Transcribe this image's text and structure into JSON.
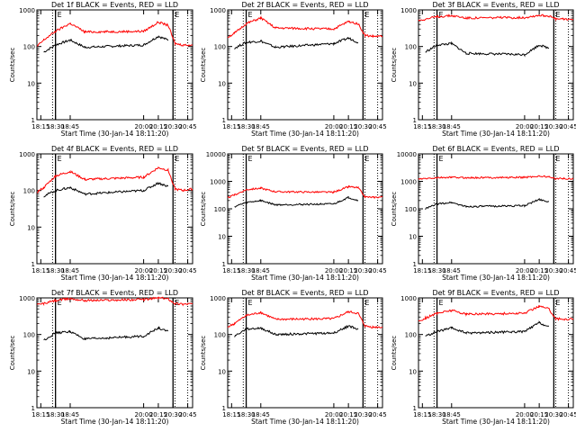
{
  "chart_data": [
    {
      "type": "line",
      "title": "Det 1f BLACK = Events, RED = LLD",
      "xlabel": "Start Time (30-Jan-14 18:11:20)",
      "ylabel": "Counts/sec",
      "yscale": "log",
      "ylim": [
        1,
        1000
      ],
      "xlim": [
        "18:11",
        "20:50"
      ],
      "xticks": [
        "18:15",
        "18:30",
        "18:45",
        "20:00",
        "20:15",
        "20:30",
        "20:45"
      ],
      "yticks": [
        "1",
        "10",
        "100",
        "1000"
      ],
      "markers": {
        "solid": [
          "18:30",
          "20:30"
        ],
        "dotted": [
          "18:27",
          "20:32",
          "20:45"
        ],
        "labels": [
          "E",
          "E"
        ]
      },
      "series": [
        {
          "color": "#000000",
          "x": [
            "18:11",
            "18:18",
            "18:30",
            "18:45",
            "19:00",
            "20:00",
            "20:15",
            "20:25",
            "20:30"
          ],
          "values": [
            null,
            70,
            110,
            150,
            95,
            110,
            190,
            150,
            null
          ]
        },
        {
          "color": "#ff0000",
          "x": [
            "18:11",
            "18:18",
            "18:30",
            "18:45",
            "19:00",
            "20:00",
            "20:15",
            "20:25",
            "20:32",
            "20:40",
            "20:50"
          ],
          "values": [
            100,
            150,
            260,
            430,
            250,
            260,
            460,
            380,
            120,
            110,
            110
          ]
        }
      ]
    },
    {
      "type": "line",
      "title": "Det 2f BLACK = Events, RED = LLD",
      "xlabel": "Start Time (30-Jan-14 18:11:20)",
      "ylabel": "Counts/sec",
      "yscale": "log",
      "ylim": [
        1,
        1000
      ],
      "xlim": [
        "18:11",
        "20:50"
      ],
      "xticks": [
        "18:15",
        "18:30",
        "18:45",
        "20:00",
        "20:15",
        "20:30",
        "20:45"
      ],
      "yticks": [
        "1",
        "10",
        "100",
        "1000"
      ],
      "markers": {
        "solid": [
          "18:30",
          "20:30"
        ],
        "dotted": [
          "18:27",
          "20:32",
          "20:45"
        ],
        "labels": [
          "E",
          "E"
        ]
      },
      "series": [
        {
          "color": "#000000",
          "x": [
            "18:11",
            "18:18",
            "18:30",
            "18:45",
            "19:00",
            "20:00",
            "20:15",
            "20:25",
            "20:30"
          ],
          "values": [
            null,
            90,
            130,
            140,
            95,
            120,
            170,
            130,
            null
          ]
        },
        {
          "color": "#ff0000",
          "x": [
            "18:11",
            "18:18",
            "18:30",
            "18:45",
            "19:00",
            "20:00",
            "20:15",
            "20:25",
            "20:32",
            "20:40",
            "20:50"
          ],
          "values": [
            180,
            230,
            420,
            600,
            320,
            300,
            480,
            420,
            200,
            190,
            190
          ]
        }
      ]
    },
    {
      "type": "line",
      "title": "Det 3f BLACK = Events, RED = LLD",
      "xlabel": "Start Time (30-Jan-14 18:11:20)",
      "ylabel": "Counts/sec",
      "yscale": "log",
      "ylim": [
        1,
        1000
      ],
      "xlim": [
        "18:11",
        "20:50"
      ],
      "xticks": [
        "18:15",
        "18:30",
        "18:45",
        "20:00",
        "20:15",
        "20:30",
        "20:45"
      ],
      "yticks": [
        "1",
        "10",
        "100",
        "1000"
      ],
      "markers": {
        "solid": [
          "18:30",
          "20:30"
        ],
        "dotted": [
          "18:27",
          "20:32",
          "20:45"
        ],
        "labels": [
          "E",
          "E"
        ]
      },
      "series": [
        {
          "color": "#000000",
          "x": [
            "18:11",
            "18:18",
            "18:30",
            "18:45",
            "19:00",
            "20:00",
            "20:15",
            "20:25",
            "20:30"
          ],
          "values": [
            null,
            70,
            110,
            120,
            65,
            60,
            110,
            90,
            null
          ]
        },
        {
          "color": "#ff0000",
          "x": [
            "18:11",
            "18:18",
            "18:30",
            "18:45",
            "19:00",
            "20:00",
            "20:15",
            "20:25",
            "20:32",
            "20:40",
            "20:50"
          ],
          "values": [
            520,
            560,
            650,
            700,
            600,
            620,
            720,
            680,
            560,
            560,
            560
          ]
        }
      ]
    },
    {
      "type": "line",
      "title": "Det 4f BLACK = Events, RED = LLD",
      "xlabel": "Start Time (30-Jan-14 18:11:20)",
      "ylabel": "Counts/sec",
      "yscale": "log",
      "ylim": [
        1,
        1000
      ],
      "xlim": [
        "18:11",
        "20:50"
      ],
      "xticks": [
        "18:15",
        "18:30",
        "18:45",
        "20:00",
        "20:15",
        "20:30",
        "20:45"
      ],
      "yticks": [
        "1",
        "10",
        "100",
        "1000"
      ],
      "markers": {
        "solid": [
          "18:30",
          "20:30"
        ],
        "dotted": [
          "18:27",
          "20:32",
          "20:45"
        ],
        "labels": [
          "E",
          "E"
        ]
      },
      "series": [
        {
          "color": "#000000",
          "x": [
            "18:11",
            "18:18",
            "18:30",
            "18:45",
            "19:00",
            "20:00",
            "20:15",
            "20:25",
            "20:30"
          ],
          "values": [
            null,
            70,
            100,
            120,
            80,
            100,
            160,
            130,
            null
          ]
        },
        {
          "color": "#ff0000",
          "x": [
            "18:11",
            "18:18",
            "18:30",
            "18:45",
            "19:00",
            "20:00",
            "20:15",
            "20:25",
            "20:32",
            "20:40",
            "20:50"
          ],
          "values": [
            90,
            120,
            250,
            330,
            200,
            230,
            420,
            360,
            110,
            100,
            110
          ]
        }
      ]
    },
    {
      "type": "line",
      "title": "Det 5f BLACK = Events, RED = LLD",
      "xlabel": "Start Time (30-Jan-14 18:11:20)",
      "ylabel": "Counts/sec",
      "yscale": "log",
      "ylim": [
        1,
        10000
      ],
      "xlim": [
        "18:11",
        "20:50"
      ],
      "xticks": [
        "18:15",
        "18:30",
        "18:45",
        "20:00",
        "20:15",
        "20:30",
        "20:45"
      ],
      "yticks": [
        "1",
        "10",
        "100",
        "1000",
        "10000"
      ],
      "markers": {
        "solid": [
          "18:30",
          "20:30"
        ],
        "dotted": [
          "18:27",
          "20:32",
          "20:45"
        ],
        "labels": [
          "E",
          "E"
        ]
      },
      "series": [
        {
          "color": "#000000",
          "x": [
            "18:11",
            "18:18",
            "18:30",
            "18:45",
            "19:00",
            "20:00",
            "20:15",
            "20:25",
            "20:30"
          ],
          "values": [
            null,
            120,
            170,
            200,
            140,
            150,
            260,
            200,
            null
          ]
        },
        {
          "color": "#ff0000",
          "x": [
            "18:11",
            "18:18",
            "18:30",
            "18:45",
            "19:00",
            "20:00",
            "20:15",
            "20:25",
            "20:32",
            "20:40",
            "20:50"
          ],
          "values": [
            250,
            320,
            500,
            560,
            420,
            400,
            640,
            580,
            270,
            260,
            270
          ]
        }
      ]
    },
    {
      "type": "line",
      "title": "Det 6f BLACK = Events, RED = LLD",
      "xlabel": "Start Time (30-Jan-14 18:11:20)",
      "ylabel": "Counts/sec",
      "yscale": "log",
      "ylim": [
        1,
        10000
      ],
      "xlim": [
        "18:11",
        "20:50"
      ],
      "xticks": [
        "18:15",
        "18:30",
        "18:45",
        "20:00",
        "20:15",
        "20:30",
        "20:45"
      ],
      "yticks": [
        "1",
        "10",
        "100",
        "1000",
        "10000"
      ],
      "markers": {
        "solid": [
          "18:30",
          "20:30"
        ],
        "dotted": [
          "18:27",
          "20:32",
          "20:45"
        ],
        "labels": [
          "E",
          "E"
        ]
      },
      "series": [
        {
          "color": "#000000",
          "x": [
            "18:11",
            "18:18",
            "18:30",
            "18:45",
            "19:00",
            "20:00",
            "20:15",
            "20:25",
            "20:30"
          ],
          "values": [
            null,
            100,
            150,
            170,
            120,
            130,
            220,
            180,
            null
          ]
        },
        {
          "color": "#ff0000",
          "x": [
            "18:11",
            "18:18",
            "18:30",
            "18:45",
            "19:00",
            "20:00",
            "20:15",
            "20:25",
            "20:32",
            "20:40",
            "20:50"
          ],
          "values": [
            1200,
            1250,
            1350,
            1400,
            1350,
            1400,
            1550,
            1450,
            1250,
            1250,
            1250
          ]
        }
      ]
    },
    {
      "type": "line",
      "title": "Det 7f BLACK = Events, RED = LLD",
      "xlabel": "Start Time (30-Jan-14 18:11:20)",
      "ylabel": "Counts/sec",
      "yscale": "log",
      "ylim": [
        1,
        1000
      ],
      "xlim": [
        "18:11",
        "20:50"
      ],
      "xticks": [
        "18:15",
        "18:30",
        "18:45",
        "20:00",
        "20:15",
        "20:30",
        "20:45"
      ],
      "yticks": [
        "1",
        "10",
        "100",
        "1000"
      ],
      "markers": {
        "solid": [
          "18:30",
          "20:30"
        ],
        "dotted": [
          "18:27",
          "20:32",
          "20:45"
        ],
        "labels": [
          "E",
          "E"
        ]
      },
      "series": [
        {
          "color": "#000000",
          "x": [
            "18:11",
            "18:18",
            "18:30",
            "18:45",
            "19:00",
            "20:00",
            "20:15",
            "20:25",
            "20:30"
          ],
          "values": [
            null,
            70,
            110,
            120,
            75,
            90,
            150,
            120,
            null
          ]
        },
        {
          "color": "#ff0000",
          "x": [
            "18:11",
            "18:18",
            "18:30",
            "18:45",
            "19:00",
            "20:00",
            "20:15",
            "20:25",
            "20:32",
            "20:40",
            "20:50"
          ],
          "values": [
            650,
            700,
            850,
            950,
            850,
            900,
            1000,
            950,
            700,
            680,
            700
          ]
        }
      ]
    },
    {
      "type": "line",
      "title": "Det 8f BLACK = Events, RED = LLD",
      "xlabel": "Start Time (30-Jan-14 18:11:20)",
      "ylabel": "Counts/sec",
      "yscale": "log",
      "ylim": [
        1,
        1000
      ],
      "xlim": [
        "18:11",
        "20:50"
      ],
      "xticks": [
        "18:15",
        "18:30",
        "18:45",
        "20:00",
        "20:15",
        "20:30",
        "20:45"
      ],
      "yticks": [
        "1",
        "10",
        "100",
        "1000"
      ],
      "markers": {
        "solid": [
          "18:30",
          "20:30"
        ],
        "dotted": [
          "18:27",
          "20:32",
          "20:45"
        ],
        "labels": [
          "E",
          "E"
        ]
      },
      "series": [
        {
          "color": "#000000",
          "x": [
            "18:11",
            "18:18",
            "18:30",
            "18:45",
            "19:00",
            "20:00",
            "20:15",
            "20:25",
            "20:30"
          ],
          "values": [
            null,
            90,
            140,
            150,
            100,
            110,
            170,
            140,
            null
          ]
        },
        {
          "color": "#ff0000",
          "x": [
            "18:11",
            "18:18",
            "18:30",
            "18:45",
            "19:00",
            "20:00",
            "20:15",
            "20:25",
            "20:32",
            "20:40",
            "20:50"
          ],
          "values": [
            160,
            200,
            330,
            400,
            260,
            270,
            420,
            380,
            170,
            160,
            160
          ]
        }
      ]
    },
    {
      "type": "line",
      "title": "Det 9f BLACK = Events, RED = LLD",
      "xlabel": "Start Time (30-Jan-14 18:11:20)",
      "ylabel": "Counts/sec",
      "yscale": "log",
      "ylim": [
        1,
        1000
      ],
      "xlim": [
        "18:11",
        "20:50"
      ],
      "xticks": [
        "18:15",
        "18:30",
        "18:45",
        "20:00",
        "20:15",
        "20:30",
        "20:45"
      ],
      "yticks": [
        "1",
        "10",
        "100",
        "1000"
      ],
      "markers": {
        "solid": [
          "18:30",
          "20:30"
        ],
        "dotted": [
          "18:27",
          "20:32",
          "20:45"
        ],
        "labels": [
          "E",
          "E"
        ]
      },
      "series": [
        {
          "color": "#000000",
          "x": [
            "18:11",
            "18:18",
            "18:30",
            "18:45",
            "19:00",
            "20:00",
            "20:15",
            "20:25",
            "20:30"
          ],
          "values": [
            null,
            90,
            120,
            150,
            110,
            120,
            210,
            160,
            null
          ]
        },
        {
          "color": "#ff0000",
          "x": [
            "18:11",
            "18:18",
            "18:30",
            "18:45",
            "19:00",
            "20:00",
            "20:15",
            "20:25",
            "20:32",
            "20:40",
            "20:50"
          ],
          "values": [
            230,
            280,
            380,
            460,
            360,
            380,
            600,
            500,
            270,
            260,
            270
          ]
        }
      ]
    }
  ]
}
